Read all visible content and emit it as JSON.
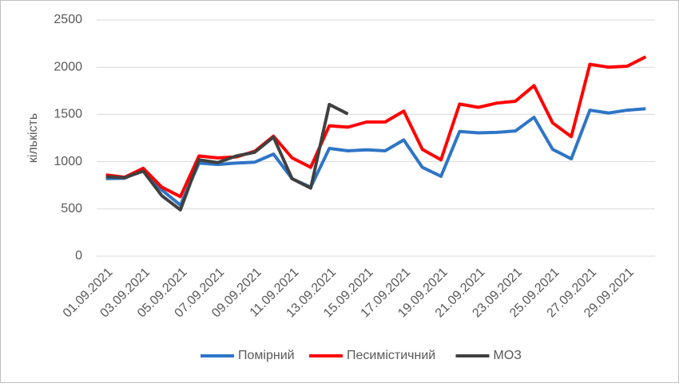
{
  "chart_data": {
    "type": "line",
    "y_label": "кількість",
    "categories": [
      "01.09.2021",
      null,
      "03.09.2021",
      null,
      "05.09.2021",
      null,
      "07.09.2021",
      null,
      "09.09.2021",
      null,
      "11.09.2021",
      null,
      "13.09.2021",
      null,
      "15.09.2021",
      null,
      "17.09.2021",
      null,
      "19.09.2021",
      null,
      "21.09.2021",
      null,
      "23.09.2021",
      null,
      "25.09.2021",
      null,
      "27.09.2021",
      null,
      "29.09.2021",
      null
    ],
    "series": [
      {
        "name": "Помірний",
        "color": "#2e75c6",
        "values": [
          820,
          825,
          910,
          700,
          540,
          985,
          970,
          985,
          995,
          1080,
          820,
          730,
          1140,
          1115,
          1125,
          1115,
          1230,
          940,
          845,
          1320,
          1305,
          1310,
          1325,
          1470,
          1130,
          1030,
          1545,
          1515,
          1545,
          1560
        ]
      },
      {
        "name": "Песимістичний",
        "color": "#ff0000",
        "values": [
          860,
          835,
          930,
          730,
          630,
          1060,
          1040,
          1050,
          1110,
          1270,
          1040,
          940,
          1380,
          1365,
          1420,
          1420,
          1535,
          1130,
          1020,
          1610,
          1575,
          1620,
          1640,
          1805,
          1410,
          1265,
          2030,
          2000,
          2010,
          2110
        ]
      },
      {
        "name": "МОЗ",
        "color": "#404040",
        "values": [
          840,
          830,
          900,
          640,
          490,
          1020,
          990,
          1060,
          1100,
          1260,
          820,
          720,
          1605,
          1505,
          null,
          null,
          null,
          null,
          null,
          null,
          null,
          null,
          null,
          null,
          null,
          null,
          null,
          null,
          null,
          null
        ]
      }
    ],
    "ylim": [
      0,
      2500
    ],
    "yticks": [
      0,
      500,
      1000,
      1500,
      2000,
      2500
    ],
    "grid": true,
    "legend": "bottom"
  }
}
